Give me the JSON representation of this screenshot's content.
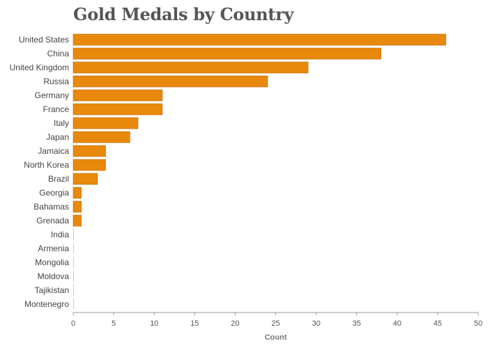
{
  "chart_data": {
    "type": "bar",
    "orientation": "horizontal",
    "title": "Gold Medals by Country",
    "xlabel": "Count",
    "ylabel": "",
    "categories": [
      "United States",
      "China",
      "United Kingdom",
      "Russia",
      "Germany",
      "France",
      "Italy",
      "Japan",
      "Jamaica",
      "North Korea",
      "Brazil",
      "Georgia",
      "Bahamas",
      "Grenada",
      "India",
      "Armenia",
      "Mongolia",
      "Moldova",
      "Tajikistan",
      "Montenegro"
    ],
    "values": [
      46,
      38,
      29,
      24,
      11,
      11,
      8,
      7,
      4,
      4,
      3,
      1,
      1,
      1,
      0,
      0,
      0,
      0,
      0,
      0
    ],
    "xlim": [
      0,
      50
    ],
    "xticks": [
      "0",
      "5",
      "10",
      "15",
      "20",
      "25",
      "30",
      "35",
      "40",
      "45",
      "50"
    ],
    "grid": false,
    "legend": "none",
    "colors": {
      "bar_fill": "#e8890c",
      "bar_stroke": "#b8690a",
      "axis": "#999999"
    }
  }
}
